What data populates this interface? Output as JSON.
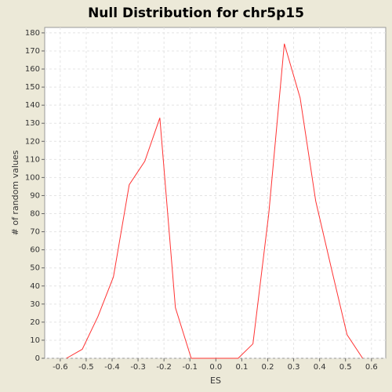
{
  "chart_data": {
    "type": "line",
    "title": "Null Distribution for chr5p15",
    "x_label": "ES",
    "y_label": "# of random values",
    "x": [
      -0.576,
      -0.515,
      -0.455,
      -0.395,
      -0.334,
      -0.274,
      -0.216,
      -0.156,
      -0.095,
      -0.035,
      0.025,
      0.086,
      0.143,
      0.204,
      0.264,
      0.325,
      0.385,
      0.445,
      0.506,
      0.566
    ],
    "series": [
      {
        "name": "null",
        "color": "#ff3333",
        "values": [
          0,
          5,
          23,
          45,
          96,
          109,
          133,
          28,
          0,
          0,
          0,
          0,
          8,
          80,
          174,
          144,
          87,
          50,
          13,
          0
        ]
      }
    ],
    "xlim": [
      -0.66,
      0.655
    ],
    "ylim": [
      0,
      183
    ],
    "xticks": [
      -0.6,
      -0.5,
      -0.4,
      -0.3,
      -0.2,
      -0.1,
      {
        "value": 0,
        "label": "0.0"
      },
      0.1,
      0.2,
      0.3,
      0.4,
      0.5,
      0.6
    ],
    "yticks": [
      0,
      10,
      20,
      30,
      40,
      50,
      60,
      70,
      80,
      90,
      100,
      110,
      120,
      130,
      140,
      150,
      160,
      170,
      180
    ],
    "grid": true
  }
}
